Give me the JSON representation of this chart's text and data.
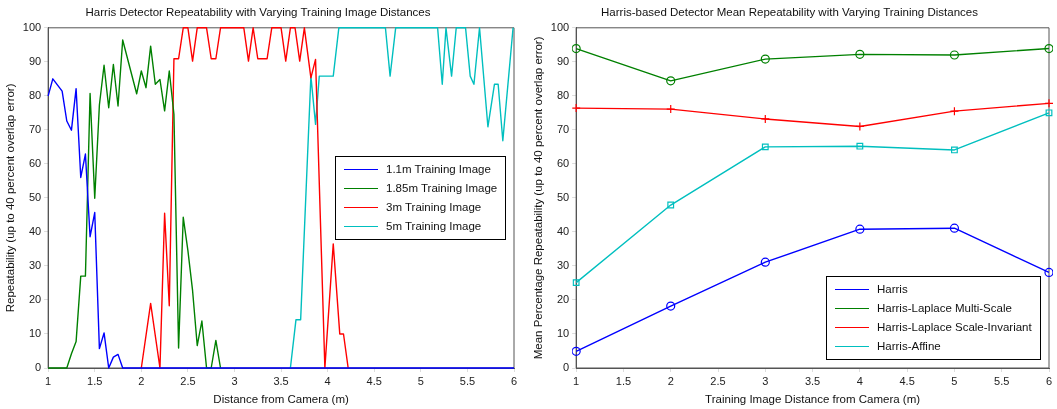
{
  "chart_data": [
    {
      "type": "line",
      "title": "Harris Detector Repeatability with Varying Training Image Distances",
      "xlabel": "Distance from Camera (m)",
      "ylabel": "Repeatability (up to 40 percent overlap error)",
      "xlim": [
        1,
        6
      ],
      "xticks": [
        1,
        1.5,
        2,
        2.5,
        3,
        3.5,
        4,
        4.5,
        5,
        5.5,
        6
      ],
      "ylim": [
        0,
        100
      ],
      "yticks": [
        0,
        10,
        20,
        30,
        40,
        50,
        60,
        70,
        80,
        90,
        100
      ],
      "grid": false,
      "legend": "right",
      "marker": "none",
      "line_style": "solid",
      "series": [
        {
          "name": "1.1m Training Image",
          "color": "#0000ff",
          "x": [
            1,
            1.05,
            1.15,
            1.2,
            1.25,
            1.3,
            1.35,
            1.4,
            1.45,
            1.5,
            1.55,
            1.6,
            1.65,
            1.7,
            1.75,
            1.8,
            6
          ],
          "values": [
            80,
            85,
            81.4,
            72.6,
            69.9,
            82.1,
            56,
            62.9,
            38.6,
            45.7,
            5.7,
            10.3,
            0,
            3.2,
            4,
            0,
            0
          ]
        },
        {
          "name": "1.85m Training Image",
          "color": "#008000",
          "x": [
            1,
            1.2,
            1.25,
            1.3,
            1.35,
            1.4,
            1.45,
            1.5,
            1.55,
            1.6,
            1.65,
            1.7,
            1.75,
            1.8,
            1.95,
            2,
            2.05,
            2.1,
            2.15,
            2.2,
            2.25,
            2.3,
            2.35,
            2.4,
            2.45,
            2.5,
            2.55,
            2.6,
            2.65,
            2.7,
            2.75,
            2.8,
            2.85
          ],
          "values": [
            0,
            0,
            4.2,
            7.8,
            27,
            27,
            80.7,
            49.9,
            77.3,
            89,
            76.5,
            89.2,
            77,
            96.4,
            80.6,
            87.3,
            82.4,
            94.6,
            83.4,
            84.8,
            75.6,
            87.3,
            74.6,
            5.9,
            44.3,
            34.5,
            22.8,
            6.6,
            13.8,
            0,
            0,
            8.1,
            0
          ]
        },
        {
          "name": "3m Training Image",
          "color": "#ff0000",
          "x": [
            2,
            2.1,
            2.2,
            2.25,
            2.3,
            2.35,
            2.4,
            2.45,
            2.5,
            2.55,
            2.6,
            2.7,
            2.75,
            2.8,
            2.85,
            3.1,
            3.15,
            3.2,
            3.25,
            3.35,
            3.4,
            3.5,
            3.55,
            3.6,
            3.65,
            3.7,
            3.75,
            3.82,
            3.87,
            3.97,
            4.06,
            4.13,
            4.17,
            4.22
          ],
          "values": [
            0,
            19,
            0,
            45.5,
            18.3,
            90.9,
            90.9,
            100,
            100,
            90.2,
            100,
            100,
            90.9,
            90.9,
            100,
            100,
            90.2,
            100,
            90.9,
            90.9,
            100,
            100,
            90.2,
            100,
            100,
            90.2,
            100,
            85.3,
            90.7,
            0,
            36.5,
            10,
            10,
            0
          ]
        },
        {
          "name": "5m Training Image",
          "color": "#00bfbf",
          "x": [
            3.6,
            3.66,
            3.71,
            3.82,
            3.87,
            3.91,
            4.06,
            4.12,
            4.62,
            4.67,
            4.73,
            5.18,
            5.23,
            5.27,
            5.33,
            5.38,
            5.48,
            5.53,
            5.57,
            5.63,
            5.72,
            5.79,
            5.83,
            5.88,
            5.99
          ],
          "values": [
            0,
            14.2,
            14.2,
            85.8,
            71.6,
            85.8,
            85.8,
            100,
            100,
            85.8,
            100,
            100,
            83.4,
            100,
            85.8,
            100,
            100,
            85.8,
            83.4,
            100,
            70.9,
            83.4,
            83.4,
            66.8,
            100
          ]
        }
      ]
    },
    {
      "type": "line",
      "title": "Harris-based Detector Mean Repeatability with Varying Training Distances",
      "xlabel": "Training Image Distance from Camera (m)",
      "ylabel": "Mean Percentage Repeatability (up to 40 percent overlap error)",
      "x": [
        1,
        2,
        3,
        4,
        5,
        6
      ],
      "xlim": [
        1,
        6
      ],
      "xticks": [
        1,
        1.5,
        2,
        2.5,
        3,
        3.5,
        4,
        4.5,
        5,
        5.5,
        6
      ],
      "ylim": [
        0,
        100
      ],
      "yticks": [
        0,
        10,
        20,
        30,
        40,
        50,
        60,
        70,
        80,
        90,
        100
      ],
      "grid": false,
      "legend": "bottom right",
      "line_style": "solid",
      "series": [
        {
          "name": "Harris",
          "color": "#0000ff",
          "marker": "circle",
          "values": [
            4.9,
            18.2,
            31.1,
            40.8,
            41.1,
            28.1
          ]
        },
        {
          "name": "Harris-Laplace Multi-Scale",
          "color": "#008000",
          "marker": "circle",
          "values": [
            93.9,
            84.4,
            90.8,
            92.2,
            92,
            93.9
          ]
        },
        {
          "name": "Harris-Laplace Scale-Invariant",
          "color": "#ff0000",
          "marker": "cross",
          "values": [
            76.4,
            76.1,
            73.2,
            71,
            75.5,
            77.8
          ]
        },
        {
          "name": "Harris-Affine",
          "color": "#00bfbf",
          "marker": "square",
          "values": [
            25.1,
            47.9,
            65,
            65.2,
            64.1,
            75
          ]
        }
      ]
    }
  ]
}
